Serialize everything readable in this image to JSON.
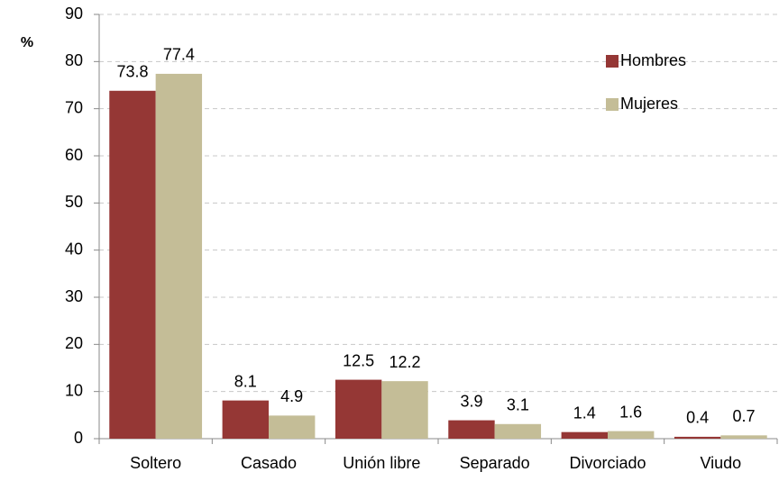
{
  "chart_data": {
    "type": "bar",
    "y_label": "%",
    "categories": [
      "Soltero",
      "Casado",
      "Unión libre",
      "Separado",
      "Divorciado",
      "Viudo"
    ],
    "series": [
      {
        "name": "Hombres",
        "color": "#953735",
        "values": [
          73.8,
          8.1,
          12.5,
          3.9,
          1.4,
          0.4
        ]
      },
      {
        "name": "Mujeres",
        "color": "#c4bd97",
        "values": [
          77.4,
          4.9,
          12.2,
          3.1,
          1.6,
          0.7
        ]
      }
    ],
    "ylim": [
      0,
      90
    ],
    "yticks": [
      0,
      10,
      20,
      30,
      40,
      50,
      60,
      70,
      80,
      90
    ],
    "grid": true,
    "legend": "upper right"
  }
}
